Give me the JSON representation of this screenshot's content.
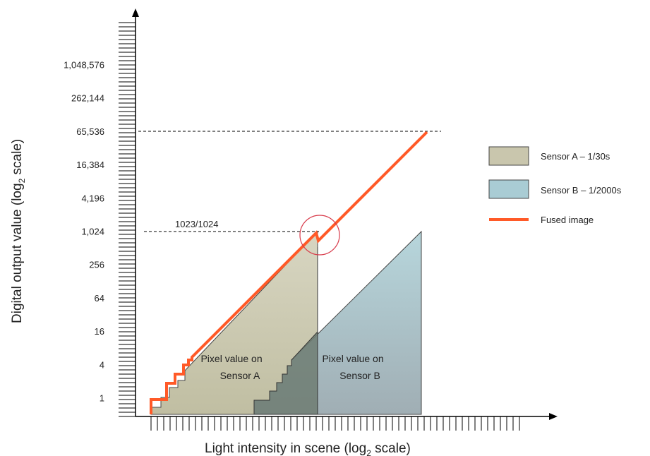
{
  "axes": {
    "x_title_main": "Light intensity in scene (log",
    "x_title_sub": "2",
    "x_title_end": " scale)",
    "y_title_main": "Digital output value (log",
    "y_title_sub": "2",
    "y_title_end": " scale)",
    "y_tick_labels": [
      "1",
      "4",
      "16",
      "64",
      "256",
      "1,024",
      "4,196",
      "16,384",
      "65,536",
      "262,144",
      "1,048,576"
    ]
  },
  "annotations": {
    "threshold_label": "1023/1024"
  },
  "regions": {
    "sensor_a_text": [
      "Pixel value on",
      "Sensor A"
    ],
    "sensor_b_text": [
      "Pixel value on",
      "Sensor B"
    ]
  },
  "legend": [
    {
      "label": "Sensor A – 1/30s",
      "kind": "box",
      "color": "#c9c6ad"
    },
    {
      "label": "Sensor B – 1/2000s",
      "kind": "box",
      "color": "#a9ccd4"
    },
    {
      "label": "Fused image",
      "kind": "line",
      "color": "#ff5a28"
    }
  ],
  "colors": {
    "fused_line": "#ff5a28",
    "highlight_circle": "#d83a4a",
    "axis": "#000000"
  }
}
